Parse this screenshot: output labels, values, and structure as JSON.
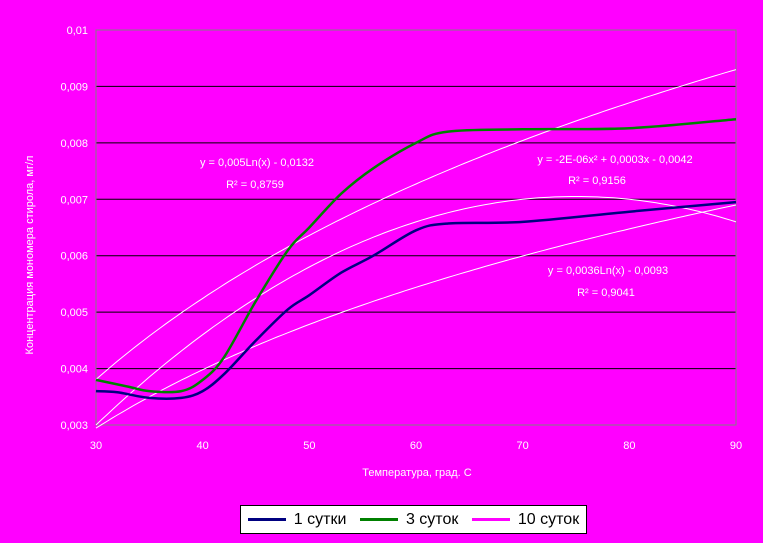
{
  "chart_data": {
    "type": "line",
    "xlabel": "Температура, град. С",
    "ylabel": "Концентрация мономера стирола, мг/л",
    "xlim": [
      30,
      90
    ],
    "ylim": [
      0.003,
      0.01
    ],
    "x_ticks": [
      "30",
      "40",
      "50",
      "60",
      "70",
      "80",
      "90"
    ],
    "y_ticks": [
      "0,003",
      "0,004",
      "0,005",
      "0,006",
      "0,007",
      "0,008",
      "0,009",
      "0,01"
    ],
    "grid": "horizontal",
    "legend_position": "bottom",
    "series": [
      {
        "name": "1 сутки",
        "color": "#000080",
        "points": [
          [
            30,
            0.0036
          ],
          [
            32,
            0.00358
          ],
          [
            35,
            0.00348
          ],
          [
            38,
            0.00348
          ],
          [
            40,
            0.0036
          ],
          [
            42,
            0.0039
          ],
          [
            45,
            0.0045
          ],
          [
            48,
            0.00505
          ],
          [
            50,
            0.0053
          ],
          [
            53,
            0.0057
          ],
          [
            56,
            0.006
          ],
          [
            60,
            0.00645
          ],
          [
            63,
            0.00657
          ],
          [
            70,
            0.0066
          ],
          [
            80,
            0.00678
          ],
          [
            90,
            0.00695
          ]
        ]
      },
      {
        "name": "3 суток",
        "color": "#008000",
        "points": [
          [
            30,
            0.0038
          ],
          [
            33,
            0.00368
          ],
          [
            35,
            0.0036
          ],
          [
            38,
            0.0036
          ],
          [
            40,
            0.0038
          ],
          [
            42,
            0.0042
          ],
          [
            45,
            0.0052
          ],
          [
            48,
            0.0061
          ],
          [
            50,
            0.0065
          ],
          [
            53,
            0.0071
          ],
          [
            56,
            0.00755
          ],
          [
            60,
            0.008
          ],
          [
            63,
            0.0082
          ],
          [
            70,
            0.00824
          ],
          [
            80,
            0.00826
          ],
          [
            90,
            0.00842
          ]
        ]
      },
      {
        "name": "10 суток",
        "color": "#FF00FF",
        "points": []
      }
    ],
    "trendlines": [
      {
        "label_line1": "y = 0,0036Ln(x) - 0,0093",
        "label_line2": "R² = 0,9041"
      },
      {
        "label_line1": "y = 0,005Ln(x) - 0,0132",
        "label_line2": "R² = 0,8759"
      },
      {
        "label_line1": "y = -2E-06x² + 0,0003x - 0,0042",
        "label_line2": "R² = 0,9156"
      }
    ]
  }
}
